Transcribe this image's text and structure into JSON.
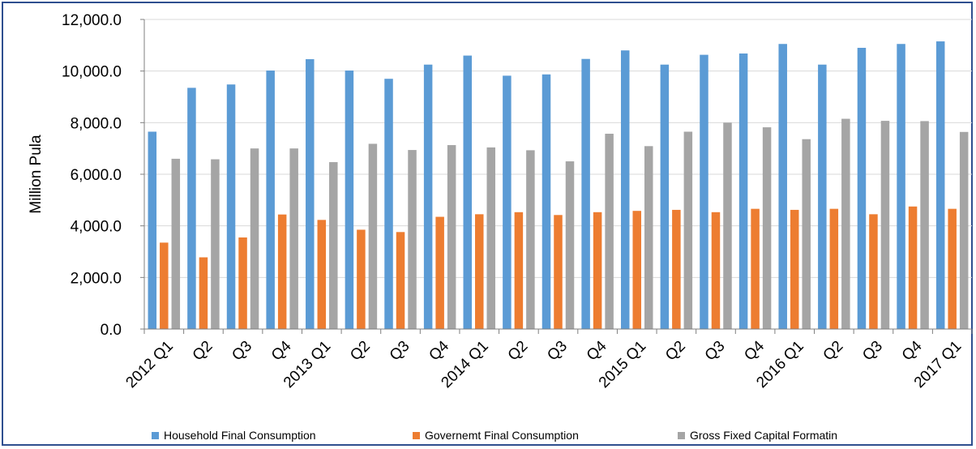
{
  "chart_data": {
    "type": "bar",
    "ylabel": "Million Pula",
    "ylim": [
      0,
      12000
    ],
    "yticks": [
      "0.0",
      "2,000.0",
      "4,000.0",
      "6,000.0",
      "8,000.0",
      "10,000.0",
      "12,000.0"
    ],
    "grid": true,
    "legend_position": "bottom",
    "categories": [
      "2012 Q1",
      "Q2",
      "Q3",
      "Q4",
      "2013 Q1",
      "Q2",
      "Q3",
      "Q4",
      "2014 Q1",
      "Q2",
      "Q3",
      "Q4",
      "2015 Q1",
      "Q2",
      "Q3",
      "Q4",
      "2016 Q1",
      "Q2",
      "Q3",
      "Q4",
      "2017 Q1"
    ],
    "series": [
      {
        "name": "Household Final Consumption",
        "color": "#5b9bd5",
        "values": [
          7650,
          9350,
          9480,
          10020,
          10460,
          10020,
          9700,
          10250,
          10600,
          9820,
          9870,
          10470,
          10800,
          10250,
          10630,
          10680,
          11050,
          10250,
          10900,
          11050,
          11150
        ]
      },
      {
        "name": "Governemt Final Consumption",
        "color": "#ed7d31",
        "values": [
          3350,
          2780,
          3550,
          4440,
          4230,
          3850,
          3760,
          4350,
          4450,
          4530,
          4420,
          4530,
          4580,
          4620,
          4530,
          4660,
          4620,
          4660,
          4450,
          4750,
          4660
        ]
      },
      {
        "name": "Gross Fixed Capital Formatin",
        "color": "#a5a5a5",
        "values": [
          6600,
          6580,
          7000,
          7000,
          6470,
          7180,
          6940,
          7130,
          7040,
          6930,
          6500,
          7570,
          7090,
          7650,
          8000,
          7820,
          7360,
          8150,
          8070,
          8060,
          7640
        ]
      }
    ]
  }
}
